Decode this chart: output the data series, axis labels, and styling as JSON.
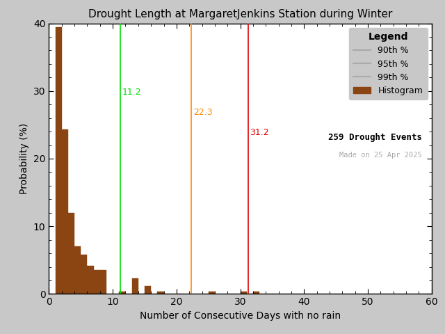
{
  "title": "Drought Length at MargaretJenkins Station during Winter",
  "xlabel": "Number of Consecutive Days with no rain",
  "ylabel": "Probability (%)",
  "xlim": [
    0,
    60
  ],
  "ylim": [
    0,
    40
  ],
  "xticks": [
    0,
    10,
    20,
    30,
    40,
    50,
    60
  ],
  "yticks": [
    0,
    10,
    20,
    30,
    40
  ],
  "bar_color": "#8B4513",
  "bar_edgecolor": "#8B4513",
  "background_color": "#c8c8c8",
  "plot_bg_color": "#ffffff",
  "percentile_90_value": 11.2,
  "percentile_95_value": 22.3,
  "percentile_99_value": 31.2,
  "percentile_90_color": "#00dd00",
  "percentile_95_color": "#ff8800",
  "percentile_99_color": "#dd0000",
  "percentile_90_label_color": "#00dd00",
  "percentile_95_label_color": "#ff8800",
  "percentile_99_label_color": "#dd0000",
  "legend_line_color": "#aaaaaa",
  "n_events": 259,
  "made_on": "Made on 25 Apr 2025",
  "legend_title": "Legend",
  "bar_heights": [
    39.4,
    24.3,
    12.0,
    7.0,
    5.8,
    4.2,
    3.5,
    3.5,
    0.0,
    0.0,
    0.4,
    0.0,
    2.3,
    0.0,
    1.2,
    0.0,
    0.4,
    0.0,
    0.0,
    0.0,
    0.0,
    0.0,
    0.0,
    0.0,
    0.4,
    0.0,
    0.0,
    0.0,
    0.0,
    0.4,
    0.0,
    0.4,
    0.0,
    0.0,
    0.0,
    0.0,
    0.0,
    0.0,
    0.0,
    0.0,
    0.0,
    0.0,
    0.0,
    0.0,
    0.0,
    0.0,
    0.0,
    0.0,
    0.0,
    0.0,
    0.0,
    0.0,
    0.0,
    0.0,
    0.0,
    0.0,
    0.0,
    0.0,
    0.0
  ]
}
